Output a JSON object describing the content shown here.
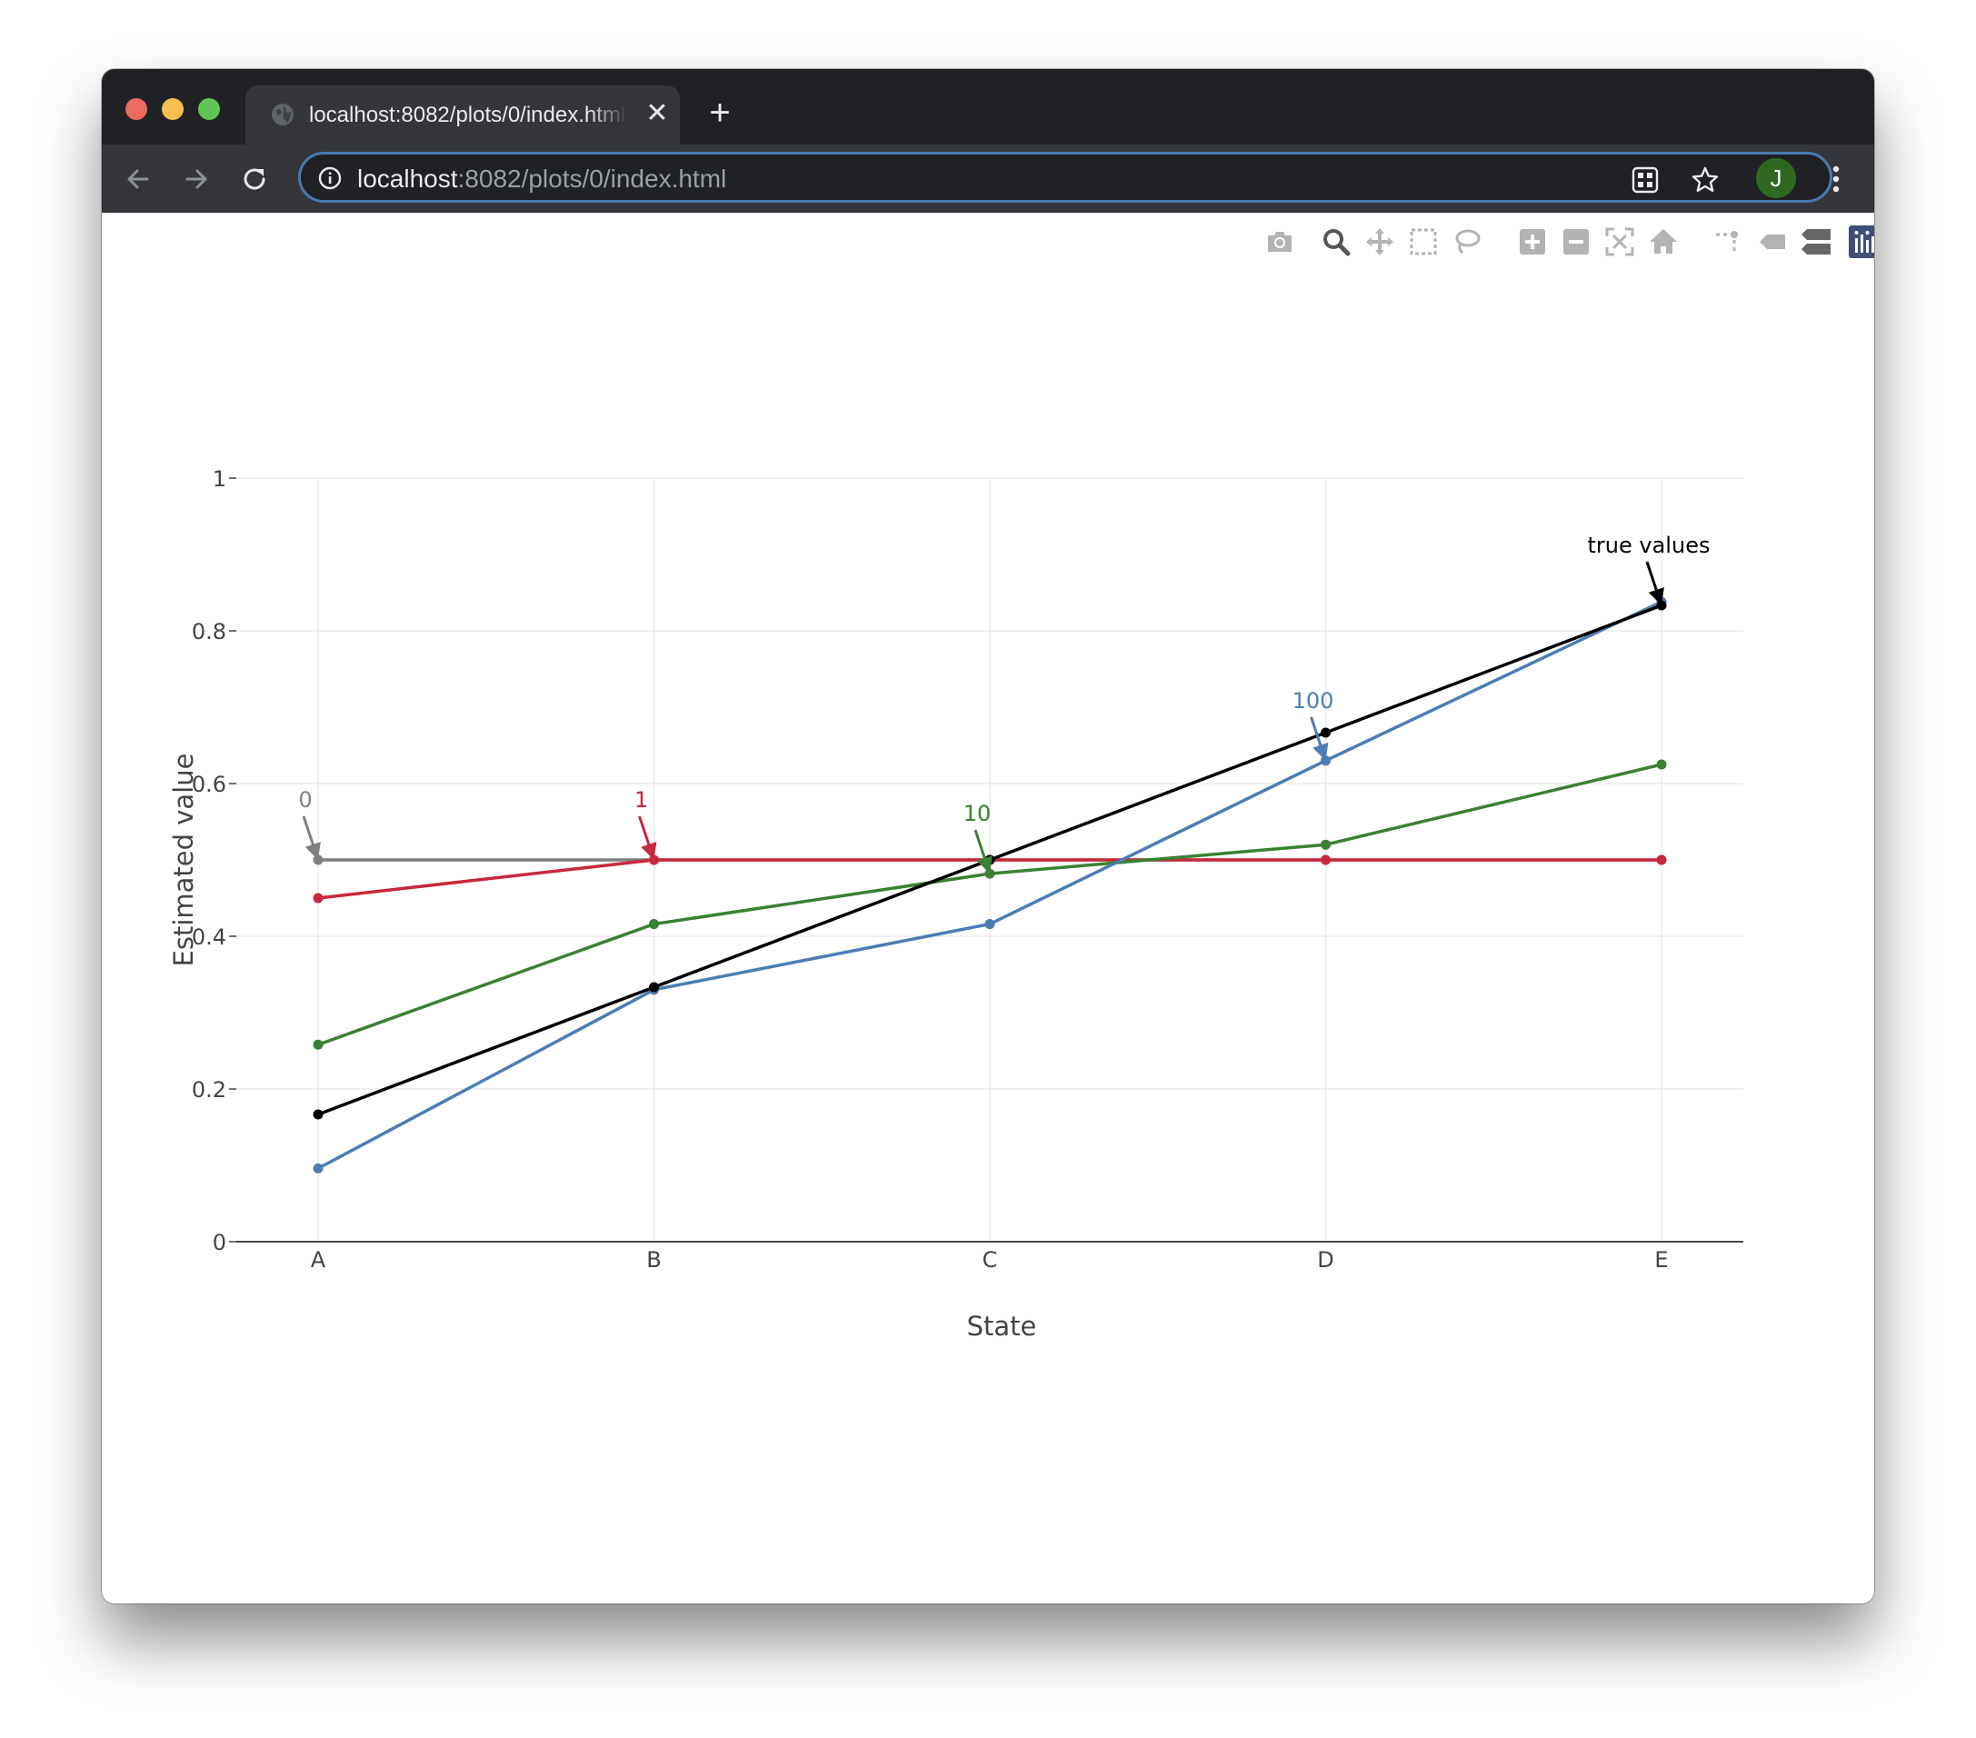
{
  "browser": {
    "tab_title": "localhost:8082/plots/0/index.html",
    "url_host": "localhost",
    "url_rest": ":8082/plots/0/index.html",
    "avatar_initial": "J",
    "icons": [
      "back-arrow-icon",
      "forward-arrow-icon",
      "reload-icon",
      "info-icon",
      "qr-code-icon",
      "star-icon",
      "menu-dots-icon",
      "globe-icon",
      "close-icon",
      "plus-icon"
    ]
  },
  "modebar": {
    "buttons": [
      "camera-icon",
      "zoom-icon",
      "pan-icon",
      "box-select-icon",
      "lasso-select-icon",
      "zoom-in-icon",
      "zoom-out-icon",
      "autoscale-icon",
      "reset-axes-icon",
      "spike-lines-icon",
      "hover-closest-icon",
      "hover-compare-icon",
      "plotly-logo-icon"
    ]
  },
  "chart_data": {
    "type": "line",
    "title": "",
    "xlabel": "State",
    "ylabel": "Estimated value",
    "categories": [
      "A",
      "B",
      "C",
      "D",
      "E"
    ],
    "ylim": [
      0,
      1
    ],
    "yticks": [
      "0",
      "0.2",
      "0.4",
      "0.6",
      "0.8",
      "1"
    ],
    "grid": true,
    "legend": "none",
    "series": [
      {
        "label": "0",
        "color": "#7f7f7f",
        "values": [
          0.5,
          0.5,
          0.5,
          0.5,
          0.5
        ],
        "annotation_index": 0
      },
      {
        "label": "1",
        "color": "#c8283c",
        "values": [
          0.45,
          0.5,
          0.5,
          0.5,
          0.5
        ],
        "annotation_index": 1
      },
      {
        "label": "10",
        "color": "#3a8132",
        "values": [
          0.258,
          0.416,
          0.482,
          0.52,
          0.625
        ],
        "annotation_index": 2
      },
      {
        "label": "100",
        "color": "#4b7db4",
        "values": [
          0.096,
          0.33,
          0.416,
          0.63,
          0.838
        ],
        "annotation_index": 3
      },
      {
        "label": "true values",
        "color": "#000000",
        "values": [
          0.1667,
          0.3333,
          0.5,
          0.6667,
          0.8333
        ],
        "annotation_index": 4
      }
    ]
  }
}
